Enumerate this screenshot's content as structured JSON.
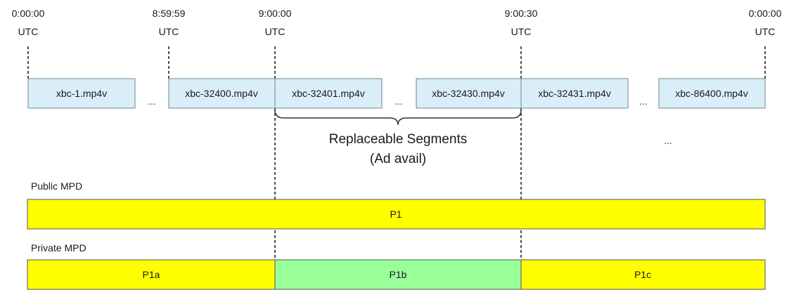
{
  "timeline": {
    "markers": [
      {
        "time": "0:00:00",
        "zone": "UTC"
      },
      {
        "time": "8:59:59",
        "zone": "UTC"
      },
      {
        "time": "9:00:00",
        "zone": "UTC"
      },
      {
        "time": "9:00:30",
        "zone": "UTC"
      },
      {
        "time": "0:00:00",
        "zone": "UTC"
      }
    ]
  },
  "segments": [
    {
      "label": "xbc-1.mp4v",
      "fill": "#daeef8"
    },
    {
      "label": "xbc-32400.mp4v",
      "fill": "#daeef8"
    },
    {
      "label": "xbc-32401.mp4v",
      "fill": "#daeef8"
    },
    {
      "label": "xbc-32430.mp4v",
      "fill": "#daeef8"
    },
    {
      "label": "xbc-32431.mp4v",
      "fill": "#daeef8"
    },
    {
      "label": "xbc-86400.mp4v",
      "fill": "#daeef8"
    }
  ],
  "ellipses": [
    "...",
    "...",
    "...",
    "..."
  ],
  "replaceable": {
    "line1": "Replaceable Segments",
    "line2": "(Ad avail)"
  },
  "public_mpd": {
    "label": "Public MPD",
    "periods": [
      {
        "label": "P1",
        "fill": "#ffff00"
      }
    ]
  },
  "private_mpd": {
    "label": "Private MPD",
    "periods": [
      {
        "label": "P1a",
        "fill": "#ffff00"
      },
      {
        "label": "P1b",
        "fill": "#99ff99"
      },
      {
        "label": "P1c",
        "fill": "#ffff00"
      }
    ]
  }
}
